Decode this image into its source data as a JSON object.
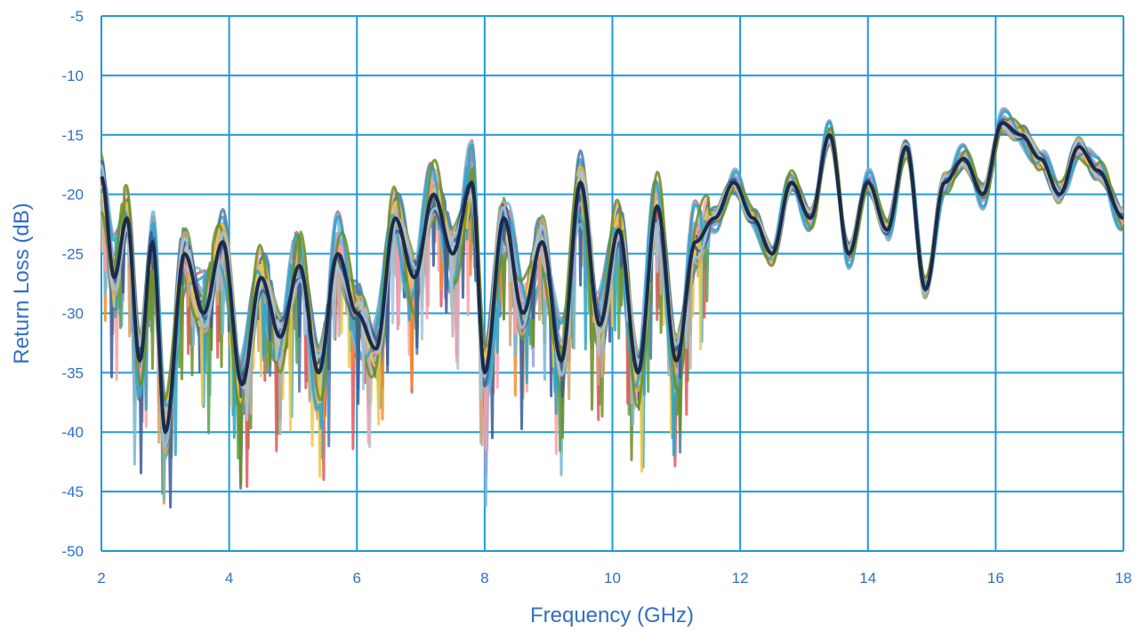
{
  "chart_data": {
    "type": "line",
    "title": "",
    "xlabel": "Frequency (GHz)",
    "ylabel": "Return Loss (dB)",
    "xlim": [
      2,
      18
    ],
    "ylim": [
      -50,
      -5
    ],
    "x_ticks": [
      2,
      4,
      6,
      8,
      10,
      12,
      14,
      16,
      18
    ],
    "y_ticks": [
      -5,
      -10,
      -15,
      -20,
      -25,
      -30,
      -35,
      -40,
      -45,
      -50
    ],
    "x_tick_labels": [
      "2",
      "4",
      "6",
      "8",
      "10",
      "12",
      "14",
      "16",
      "18"
    ],
    "y_tick_labels": [
      "-5",
      "-10",
      "-15",
      "-20",
      "-25",
      "-30",
      "-35",
      "-40",
      "-45",
      "-50"
    ],
    "grid": true,
    "legend": "none",
    "colors": {
      "axis_text": "#2f6fc7",
      "grid": "#1f9ad6",
      "highlight": "#1c2a4a",
      "series_palette": [
        "#f28e2b",
        "#4e79a7",
        "#e15759",
        "#59a14f",
        "#76b7d6",
        "#9c9ede",
        "#ff9da7",
        "#bab0ac",
        "#edc948",
        "#2ca6c8",
        "#6b8e23",
        "#d4a373",
        "#3a5a98",
        "#a3c4dc"
      ]
    },
    "series": [
      {
        "x": [
          2,
          2.2,
          2.4,
          2.6,
          2.8,
          3,
          3.3,
          3.6,
          3.9,
          4.2,
          4.5,
          4.8,
          5.1,
          5.4,
          5.7,
          6,
          6.3,
          6.6,
          6.9,
          7.2,
          7.5,
          7.8,
          8.0,
          8.3,
          8.6,
          8.9,
          9.2,
          9.5,
          9.8,
          10.1,
          10.4,
          10.7,
          11.0,
          11.3,
          11.6,
          11.9,
          12.2,
          12.5,
          12.8,
          13.1,
          13.4,
          13.7,
          14.0,
          14.3,
          14.6,
          14.9,
          15.2,
          15.5,
          15.8,
          16.1,
          16.4,
          16.7,
          17.0,
          17.3,
          17.6,
          18
        ],
        "y": [
          -18.5,
          -27,
          -22,
          -34,
          -24,
          -40,
          -25,
          -30,
          -24,
          -36,
          -27,
          -32,
          -26,
          -35,
          -25,
          -30,
          -33,
          -22,
          -27,
          -20,
          -25,
          -19,
          -35,
          -22,
          -30,
          -24,
          -34,
          -19,
          -31,
          -23,
          -35,
          -21,
          -34,
          -24,
          -22,
          -19,
          -22,
          -25,
          -19,
          -22,
          -15,
          -25,
          -19,
          -23,
          -16,
          -28,
          -19,
          -17,
          -20,
          -14,
          -15,
          -17,
          -20,
          -16,
          -18,
          -22
        ]
      }
    ]
  }
}
